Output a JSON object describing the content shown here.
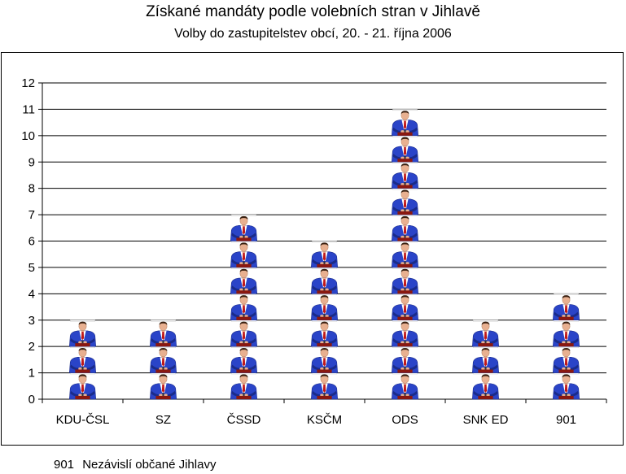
{
  "chart_data": {
    "type": "bar",
    "title": "Získané mandáty podle volebních stran v Jihlavě",
    "subtitle": "Volby do zastupitelstev obcí, 20. - 21. října 2006",
    "categories": [
      "KDU-ČSL",
      "SZ",
      "ČSSD",
      "KSČM",
      "ODS",
      "SNK ED",
      "901"
    ],
    "values": [
      3,
      3,
      7,
      6,
      11,
      3,
      4
    ],
    "ylim": [
      0,
      12
    ],
    "yticks": [
      0,
      1,
      2,
      3,
      4,
      5,
      6,
      7,
      8,
      9,
      10,
      11,
      12
    ],
    "grid": true,
    "bar_style": "stacked pictogram (one figure per seat)"
  },
  "footnote": {
    "code": "901",
    "text": "Nezávislí občané Jihlavy"
  },
  "colors": {
    "suit": "#2a44c8",
    "suit_shadow": "#1a2b8a",
    "skin": "#e8b090",
    "hair": "#3a2010",
    "tie": "#c01818",
    "podium": "#8a1810",
    "grid": "#000000"
  }
}
